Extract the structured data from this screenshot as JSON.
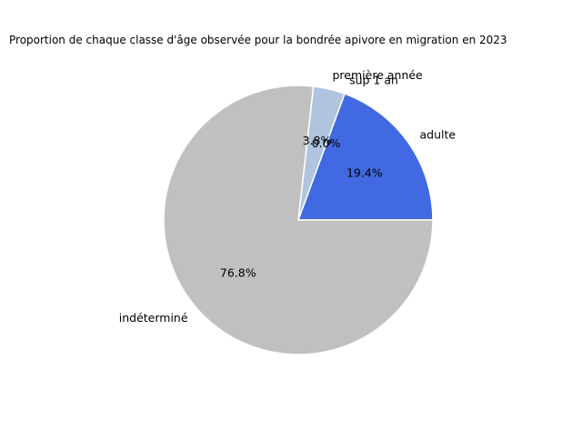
{
  "chart_data": {
    "type": "pie",
    "title": "Proportion de chaque classe d'âge observée pour la bondrée apivore en migration en 2023",
    "labels": [
      "adulte",
      "sup 1 an",
      "première année",
      "indéterminé"
    ],
    "values": [
      19.4,
      0.0,
      3.8,
      76.8
    ],
    "percent_labels": [
      "19.4%",
      "0.0%",
      "3.8%",
      "76.8%"
    ],
    "colors": [
      "#4169e1",
      "#b0c4de",
      "#b0c4de",
      "#c0c0c0"
    ],
    "start_angle": "0 degrees (3 o'clock), counter-clockwise",
    "slice_edge_color": "#ffffff"
  }
}
